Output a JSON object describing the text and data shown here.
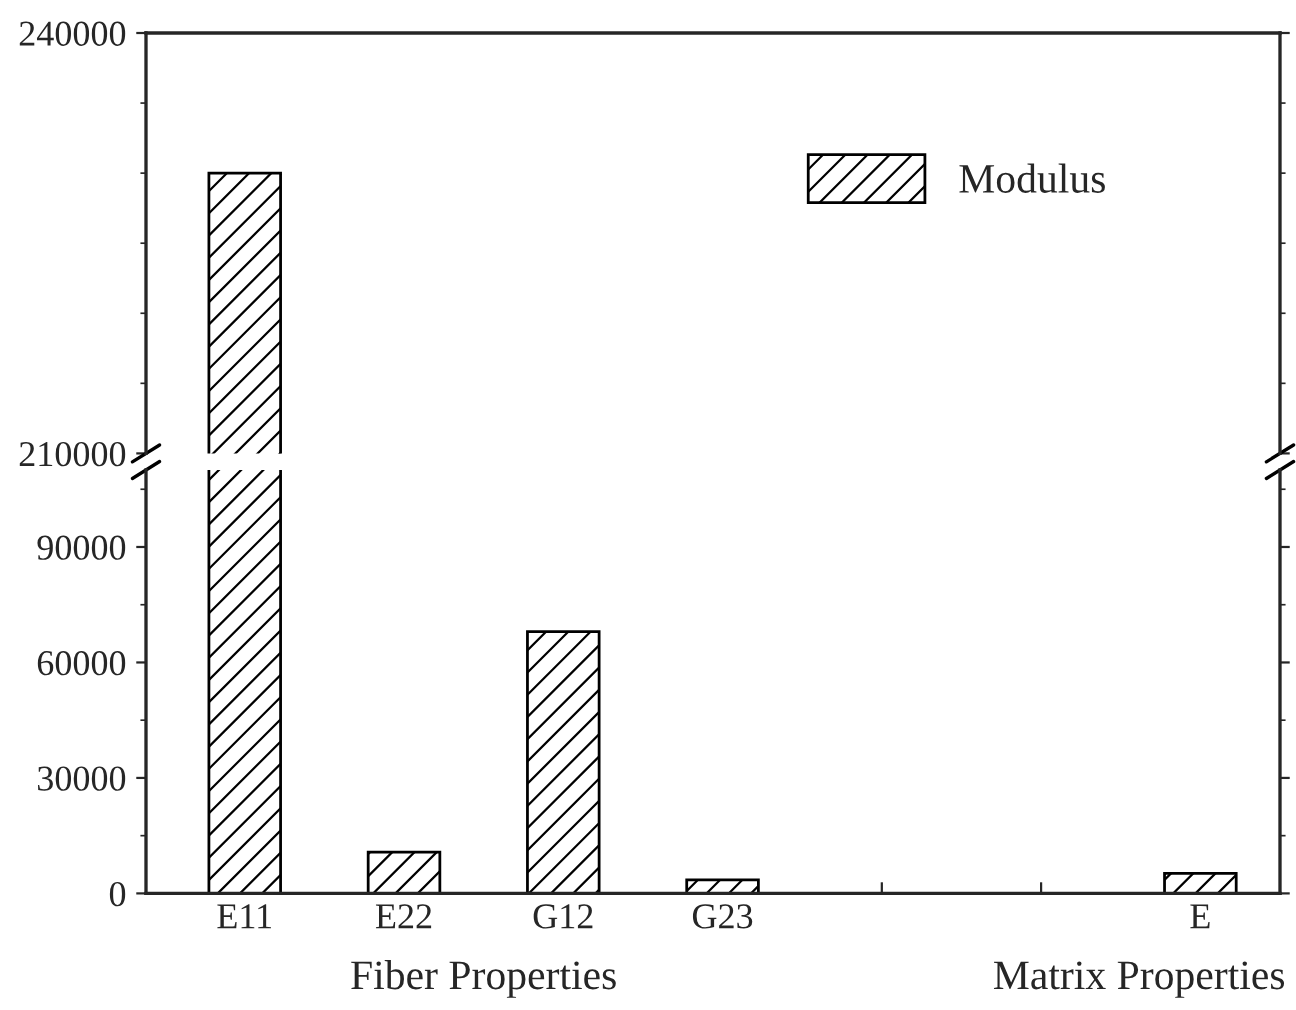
{
  "chart_data": [
    {
      "type": "bar",
      "series": [
        {
          "name": "Modulus",
          "color": "#000000",
          "values": [
            230000,
            null,
            null,
            null,
            null,
            null,
            null
          ]
        }
      ],
      "ylim": [
        210000,
        240000
      ],
      "yticks": [
        210000,
        240000
      ],
      "tick_labels": "y",
      "legend": "top right"
    },
    {
      "type": "bar",
      "categories": [
        "E11",
        "E22",
        "G12",
        "G23",
        null,
        null,
        "E"
      ],
      "series": [
        {
          "color": "#000000",
          "values": [
            null,
            10700,
            68000,
            3500,
            null,
            null,
            5200
          ]
        }
      ],
      "ylim": [
        0,
        110000
      ],
      "yticks": [
        0,
        30000,
        60000,
        90000
      ],
      "annotations": [
        "Fiber Properties",
        "Matrix Properties"
      ]
    }
  ]
}
